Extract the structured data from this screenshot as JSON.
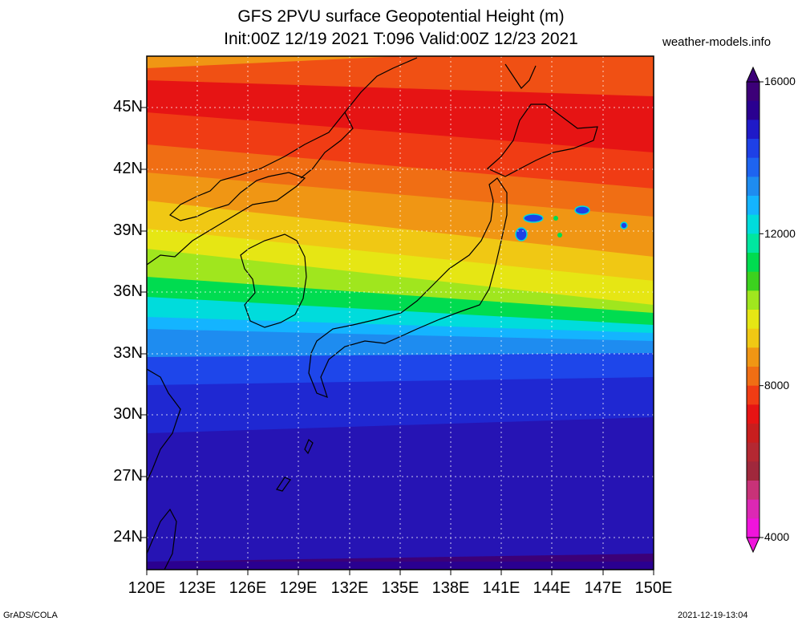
{
  "header": {
    "title_line1": "GFS 2PVU surface Geopotential Height (m)",
    "title_line2": "Init:00Z 12/19 2021 T:096 Valid:00Z 12/23 2021",
    "site": "weather-models.info"
  },
  "map": {
    "region": "Japan and surrounding seas",
    "lat_labels": [
      "45N",
      "42N",
      "39N",
      "36N",
      "33N",
      "30N",
      "27N",
      "24N"
    ],
    "lon_labels": [
      "120E",
      "123E",
      "126E",
      "129E",
      "132E",
      "135E",
      "138E",
      "141E",
      "144E",
      "147E",
      "150E"
    ],
    "grid": true
  },
  "colorbar": {
    "labels": [
      "16000",
      "12000",
      "8000",
      "4000"
    ],
    "colors": [
      "#3c0078",
      "#2a0090",
      "#1f1ac8",
      "#1e40e6",
      "#1e64f0",
      "#1e8cf0",
      "#14b4ff",
      "#00dcdc",
      "#00e6a0",
      "#00dc50",
      "#3cd21e",
      "#a0e61e",
      "#e6e614",
      "#f0c814",
      "#f09614",
      "#f06e14",
      "#f03c14",
      "#e61414",
      "#c81e1e",
      "#b42832",
      "#a0283c",
      "#c83278",
      "#dc28b4",
      "#f014dc"
    ]
  },
  "footer": {
    "left": "GrADS/COLA",
    "right": "2021-12-19-13:04"
  }
}
